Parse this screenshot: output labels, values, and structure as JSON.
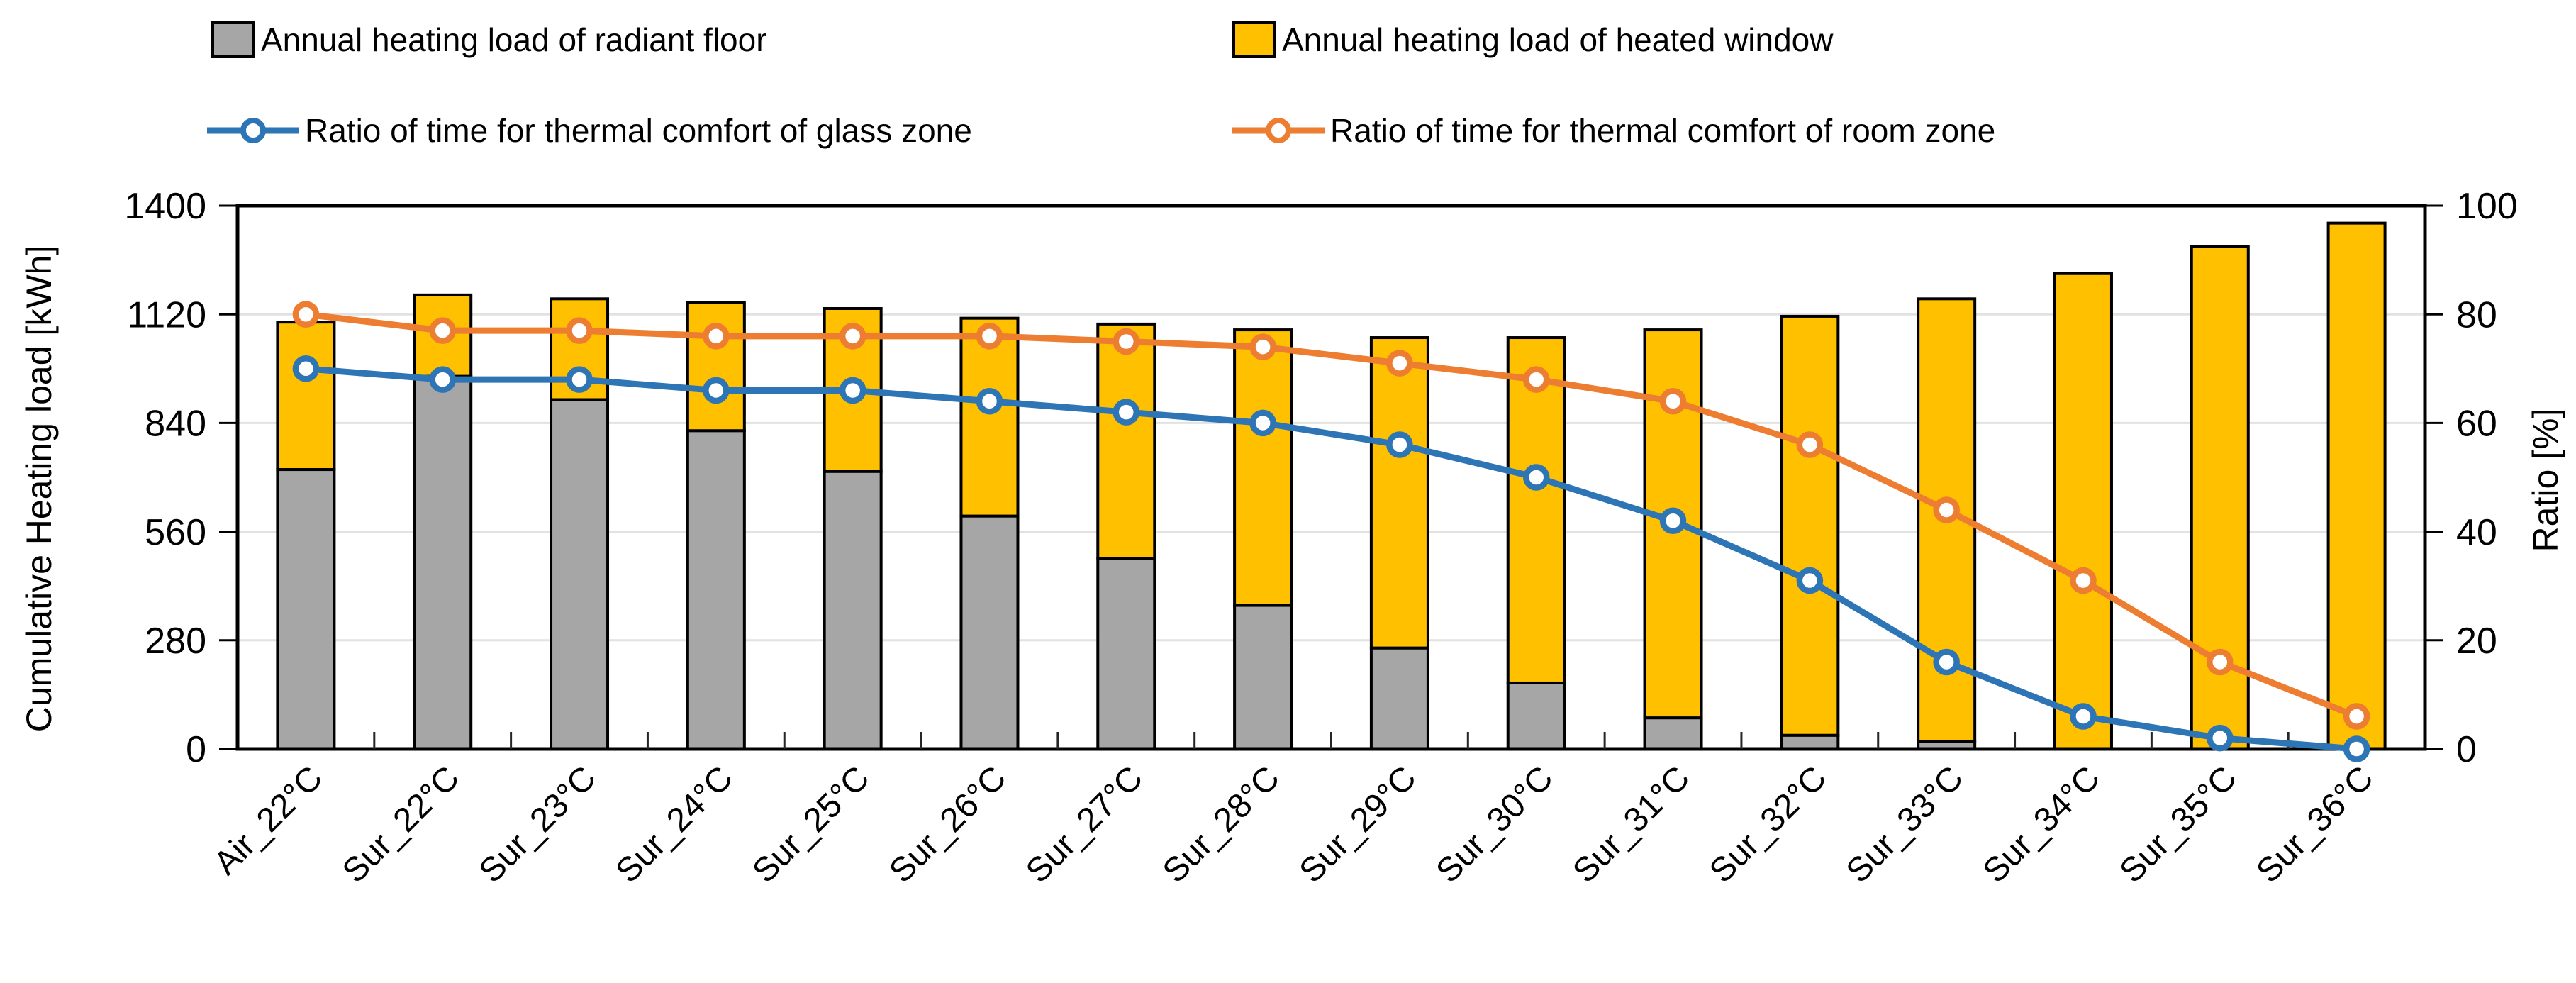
{
  "chart_data": {
    "type": "bar",
    "subtype": "stacked-bars-with-ratio-lines",
    "legend_position": "top",
    "grid": "horizontal",
    "categories": [
      "Air_22°C",
      "Sur_22°C",
      "Sur_23°C",
      "Sur_24°C",
      "Sur_25°C",
      "Sur_26°C",
      "Sur_27°C",
      "Sur_28°C",
      "Sur_29°C",
      "Sur_30°C",
      "Sur_31°C",
      "Sur_32°C",
      "Sur_33°C",
      "Sur_34°C",
      "Sur_35°C",
      "Sur_36°C"
    ],
    "series": [
      {
        "name": "Annual heating load of radiant floor",
        "type": "bar",
        "stack": "load",
        "axis": "left",
        "color": "#A6A6A6",
        "values": [
          720,
          960,
          900,
          820,
          715,
          600,
          490,
          370,
          260,
          170,
          80,
          35,
          20,
          0,
          0,
          0
        ]
      },
      {
        "name": "Annual heating load of heated window",
        "type": "bar",
        "stack": "load",
        "axis": "left",
        "color": "#FFC000",
        "values": [
          380,
          210,
          260,
          330,
          420,
          510,
          605,
          710,
          800,
          890,
          1000,
          1080,
          1140,
          1225,
          1295,
          1355
        ]
      },
      {
        "name": "Ratio of time for thermal comfort of glass zone",
        "type": "line",
        "axis": "right",
        "color": "#2E75B6",
        "values": [
          70,
          68,
          68,
          66,
          66,
          64,
          62,
          60,
          56,
          50,
          42,
          31,
          16,
          6,
          2,
          0
        ]
      },
      {
        "name": "Ratio of time for thermal comfort of room zone",
        "type": "line",
        "axis": "right",
        "color": "#ED7D31",
        "values": [
          80,
          77,
          77,
          76,
          76,
          76,
          75,
          74,
          71,
          68,
          64,
          56,
          44,
          31,
          16,
          6
        ]
      }
    ],
    "ylabel_left": "Cumulative Heating load [kWh]",
    "ylabel_right": "Ratio [%]",
    "ylim_left": [
      0,
      1400
    ],
    "left_ticks": [
      "0",
      "280",
      "560",
      "840",
      "1120",
      "1400"
    ],
    "ylim_right": [
      0,
      100
    ],
    "right_ticks": [
      "0",
      "20",
      "40",
      "60",
      "80",
      "100"
    ]
  },
  "colors": {
    "radiant_floor": "#A6A6A6",
    "heated_window": "#FFC000",
    "glass_zone_line": "#2E75B6",
    "room_zone_line": "#ED7D31",
    "gridline": "#E2E2E2",
    "axis": "#000000",
    "background": "#FFFFFF",
    "bar_border": "#000000"
  }
}
